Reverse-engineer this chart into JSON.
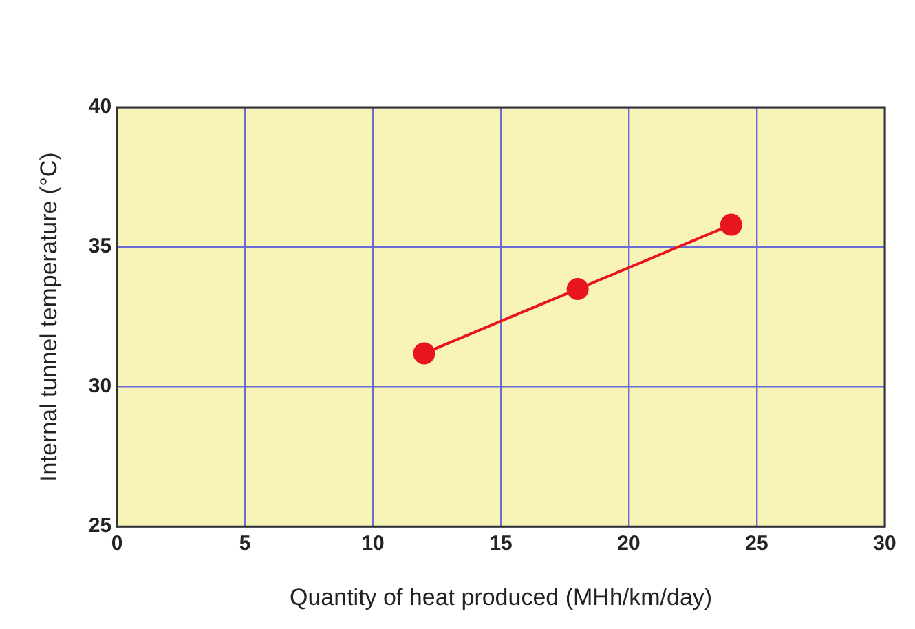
{
  "chart_data": {
    "type": "line",
    "xlabel": "Quantity of heat produced (MHh/km/day)",
    "ylabel": "Internal tunnel temperature (°C)",
    "x": [
      12,
      18,
      24
    ],
    "series": [
      {
        "color": "#e8141e",
        "values": [
          31.2,
          33.5,
          35.8
        ]
      }
    ],
    "xlim": [
      0,
      30
    ],
    "xticks": [
      0,
      5,
      10,
      15,
      20,
      25,
      30
    ],
    "ylim": [
      25,
      40
    ],
    "yticks": [
      25,
      30,
      35,
      40
    ],
    "grid": true,
    "marker": "circle",
    "line_style": "solid"
  }
}
